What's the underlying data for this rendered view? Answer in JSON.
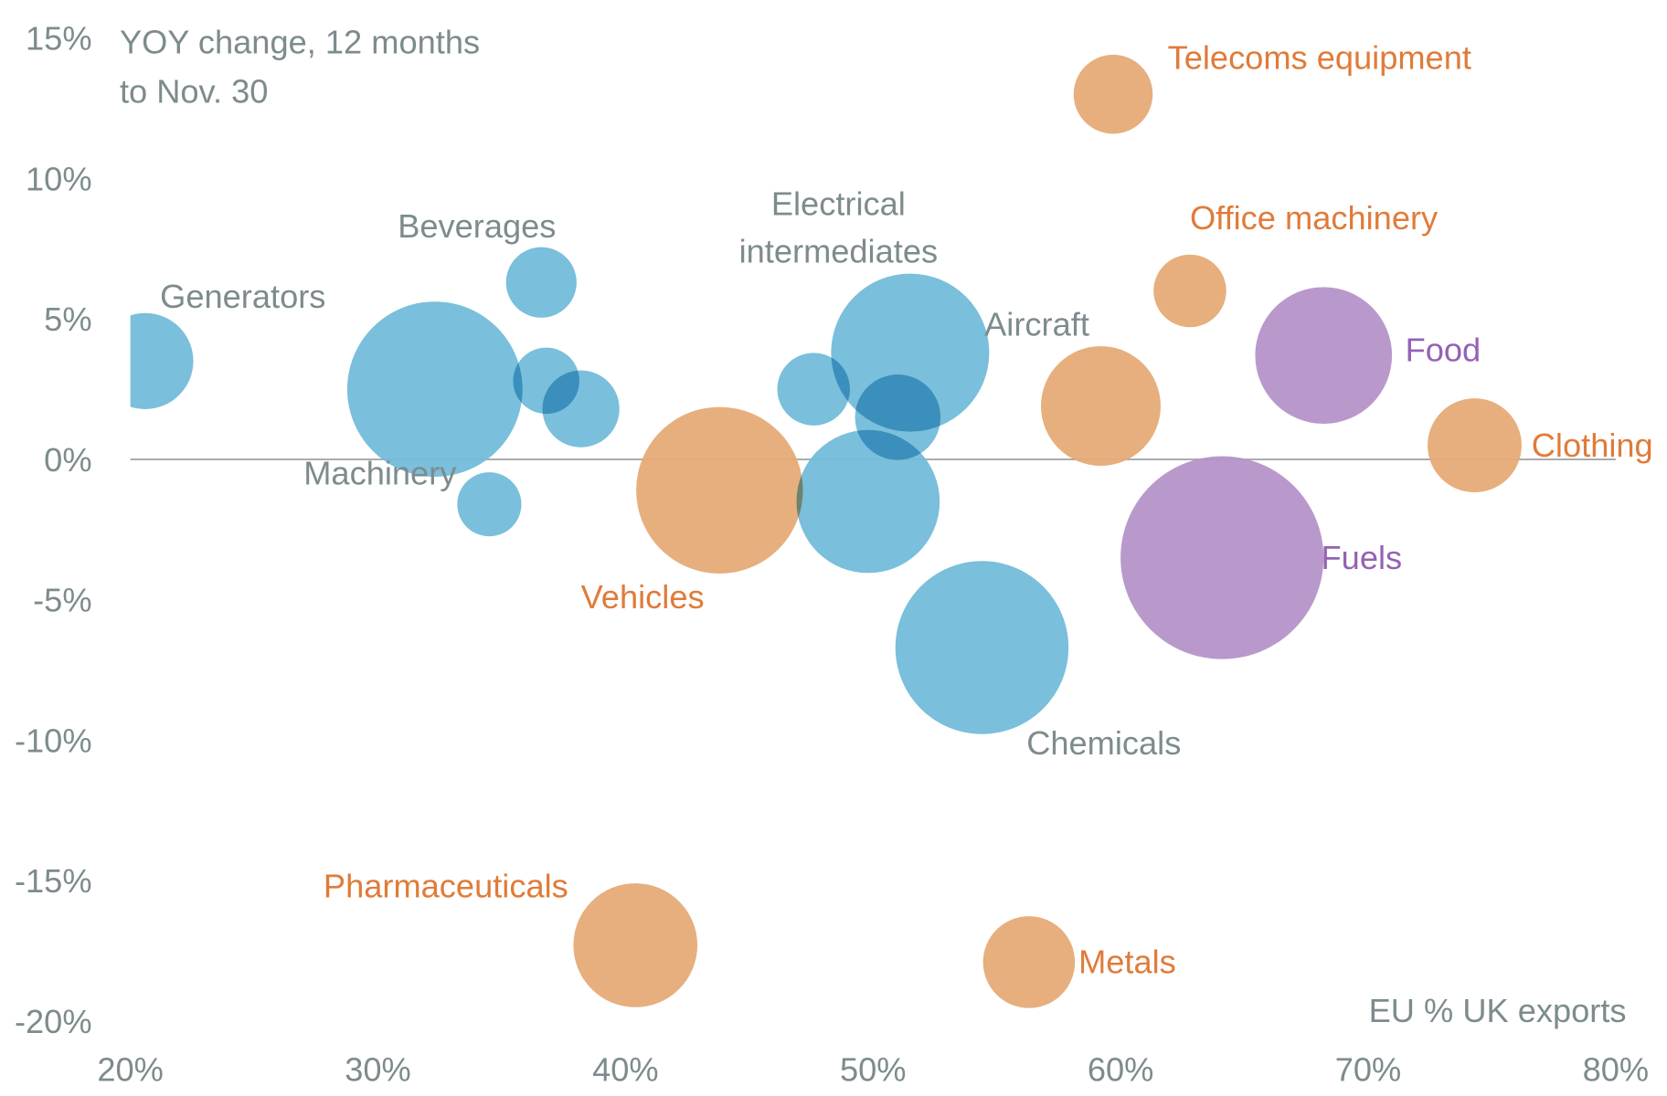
{
  "chart_data": {
    "type": "scatter",
    "subtype": "bubble",
    "title": "",
    "ylabel": "YOY change, 12 months to Nov. 30",
    "ylabel_lines": [
      "YOY change, 12 months",
      "to Nov. 30"
    ],
    "xlabel": "EU % UK exports",
    "xlim": [
      20,
      80
    ],
    "ylim": [
      -20,
      15
    ],
    "x_ticks": [
      "20%",
      "30%",
      "40%",
      "50%",
      "60%",
      "70%",
      "80%"
    ],
    "x_tick_values": [
      20,
      30,
      40,
      50,
      60,
      70,
      80
    ],
    "y_ticks": [
      "15%",
      "10%",
      "5%",
      "0%",
      "-5%",
      "-10%",
      "-15%",
      "-20%"
    ],
    "y_tick_values": [
      15,
      10,
      5,
      0,
      -5,
      -10,
      -15,
      -20
    ],
    "grid": false,
    "zero_line": true,
    "colors": {
      "blue": "#73bcd9",
      "orange": "#e5ab76",
      "purple": "#b594c8",
      "text_gray": "#7d8b8d",
      "text_orange": "#e07b39",
      "text_purple": "#9462b4"
    },
    "points": [
      {
        "label": "Generators",
        "x": 20.6,
        "y": 3.5,
        "size": 45,
        "group": "blue"
      },
      {
        "label": "Machinery",
        "x": 32.3,
        "y": 2.5,
        "size": 82,
        "group": "blue"
      },
      {
        "label": "Beverages",
        "x": 36.6,
        "y": 6.3,
        "size": 33,
        "group": "blue"
      },
      {
        "label": "",
        "x": 36.8,
        "y": 2.8,
        "size": 31,
        "group": "blue"
      },
      {
        "label": "",
        "x": 38.2,
        "y": 1.8,
        "size": 36,
        "group": "blue"
      },
      {
        "label": "",
        "x": 34.5,
        "y": -1.6,
        "size": 30,
        "group": "blue"
      },
      {
        "label": "Vehicles",
        "x": 43.8,
        "y": -1.1,
        "size": 78,
        "group": "orange"
      },
      {
        "label": "",
        "x": 47.6,
        "y": 2.5,
        "size": 34,
        "group": "blue"
      },
      {
        "label": "Electrical intermediates",
        "x": 51.5,
        "y": 3.8,
        "size": 74,
        "group": "blue"
      },
      {
        "label": "",
        "x": 51.0,
        "y": 1.5,
        "size": 40,
        "group": "blue"
      },
      {
        "label": "",
        "x": 49.8,
        "y": -1.5,
        "size": 67,
        "group": "blue"
      },
      {
        "label": "Chemicals",
        "x": 54.4,
        "y": -6.7,
        "size": 81,
        "group": "blue"
      },
      {
        "label": "Telecoms equipment",
        "x": 59.7,
        "y": 13.0,
        "size": 37,
        "group": "orange"
      },
      {
        "label": "Office machinery",
        "x": 62.8,
        "y": 6.0,
        "size": 34,
        "group": "orange"
      },
      {
        "label": "Aircraft",
        "x": 59.2,
        "y": 1.9,
        "size": 56,
        "group": "orange"
      },
      {
        "label": "Food",
        "x": 68.2,
        "y": 3.7,
        "size": 64,
        "group": "purple"
      },
      {
        "label": "Clothing",
        "x": 74.3,
        "y": 0.5,
        "size": 44,
        "group": "orange"
      },
      {
        "label": "Fuels",
        "x": 64.1,
        "y": -3.5,
        "size": 95,
        "group": "purple"
      },
      {
        "label": "Pharmaceuticals",
        "x": 40.4,
        "y": -17.3,
        "size": 58,
        "group": "orange"
      },
      {
        "label": "Metals",
        "x": 56.3,
        "y": -17.9,
        "size": 43,
        "group": "orange"
      }
    ],
    "labels": [
      {
        "text": "Generators",
        "x": 21.2,
        "y": 5.4,
        "color": "text_gray",
        "anchor": "start"
      },
      {
        "text": "Beverages",
        "x": 30.8,
        "y": 7.9,
        "color": "text_gray",
        "anchor": "start"
      },
      {
        "text": "Machinery",
        "x": 27.0,
        "y": -0.9,
        "color": "text_gray",
        "anchor": "start"
      },
      {
        "text": "Electrical",
        "x": 48.6,
        "y": 8.7,
        "color": "text_gray",
        "anchor": "middle"
      },
      {
        "text": "intermediates",
        "x": 48.6,
        "y": 7.0,
        "color": "text_gray",
        "anchor": "middle"
      },
      {
        "text": "Aircraft",
        "x": 54.5,
        "y": 4.4,
        "color": "text_gray",
        "anchor": "start"
      },
      {
        "text": "Chemicals",
        "x": 56.2,
        "y": -10.5,
        "color": "text_gray",
        "anchor": "start"
      },
      {
        "text": "Vehicles",
        "x": 38.2,
        "y": -5.3,
        "color": "text_orange",
        "anchor": "start"
      },
      {
        "text": "Telecoms equipment",
        "x": 61.9,
        "y": 13.9,
        "color": "text_orange",
        "anchor": "start"
      },
      {
        "text": "Office machinery",
        "x": 62.8,
        "y": 8.2,
        "color": "text_orange",
        "anchor": "start"
      },
      {
        "text": "Clothing",
        "x": 76.6,
        "y": 0.1,
        "color": "text_orange",
        "anchor": "start"
      },
      {
        "text": "Pharmaceuticals",
        "x": 27.8,
        "y": -15.6,
        "color": "text_orange",
        "anchor": "start"
      },
      {
        "text": "Metals",
        "x": 58.3,
        "y": -18.3,
        "color": "text_orange",
        "anchor": "start"
      },
      {
        "text": "Food",
        "x": 71.5,
        "y": 3.5,
        "color": "text_purple",
        "anchor": "start"
      },
      {
        "text": "Fuels",
        "x": 68.1,
        "y": -3.9,
        "color": "text_purple",
        "anchor": "start"
      }
    ]
  }
}
